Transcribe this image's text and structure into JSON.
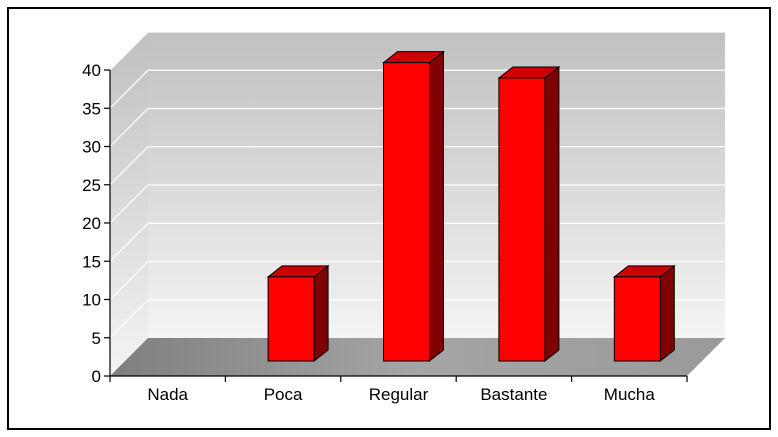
{
  "chart_data": {
    "type": "bar",
    "style": "3d-column",
    "categories": [
      "Nada",
      "Poca",
      "Regular",
      "Bastante",
      "Mucha"
    ],
    "values": [
      0,
      11,
      39,
      37,
      11
    ],
    "ylim": [
      0,
      40
    ],
    "yticks": [
      "0",
      "5",
      "10",
      "15",
      "20",
      "25",
      "30",
      "35",
      "40"
    ],
    "title": "",
    "xlabel": "",
    "ylabel": "",
    "grid": true,
    "legend": "none",
    "colors": {
      "bar_front": "#ff0000",
      "bar_side": "#800000",
      "bar_top": "#cc0000",
      "bar_outline": "#000000",
      "wall_top": "#c0c0c0",
      "wall_bottom": "#f4f4f4",
      "floor": "#8c8c8c",
      "gridline": "#ffffff",
      "frame_border": "#000000"
    }
  }
}
